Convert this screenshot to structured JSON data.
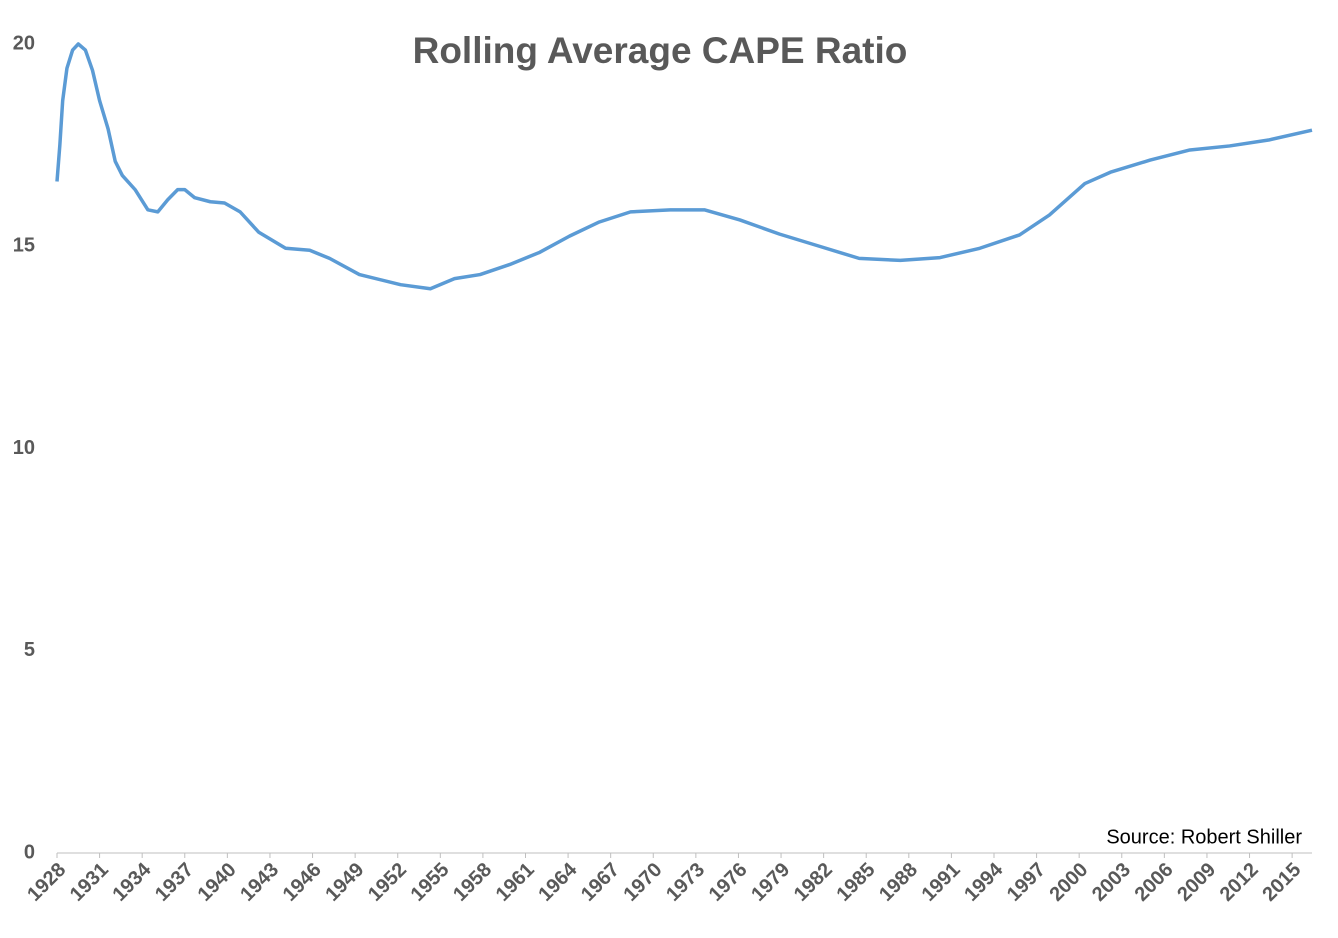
{
  "chart_data": {
    "type": "line",
    "title": "Rolling Average CAPE Ratio",
    "annotation": "Source: Robert Shiller",
    "x": [
      1928.0,
      1928.2,
      1928.4,
      1928.7,
      1929.1,
      1929.5,
      1930.0,
      1930.5,
      1931.0,
      1931.6,
      1932.1,
      1932.6,
      1933.5,
      1934.4,
      1935.1,
      1935.8,
      1936.5,
      1937.0,
      1937.7,
      1938.8,
      1939.8,
      1940.9,
      1942.2,
      1944.1,
      1945.8,
      1947.2,
      1949.3,
      1952.2,
      1954.3,
      1956.0,
      1957.8,
      1959.9,
      1962.0,
      1964.1,
      1966.2,
      1968.4,
      1971.2,
      1973.6,
      1976.1,
      1978.9,
      1981.7,
      1984.5,
      1987.4,
      1990.2,
      1993.0,
      1995.8,
      1997.9,
      2000.4,
      2002.2,
      2005.0,
      2007.8,
      2010.6,
      2013.4,
      2016.4
    ],
    "series": [
      {
        "name": "Rolling Average CAPE",
        "color": "#5b9bd5",
        "values": [
          16.6,
          17.5,
          18.6,
          19.4,
          19.85,
          20.0,
          19.85,
          19.35,
          18.6,
          17.9,
          17.1,
          16.75,
          16.4,
          15.9,
          15.85,
          16.15,
          16.4,
          16.4,
          16.2,
          16.1,
          16.07,
          15.85,
          15.35,
          14.95,
          14.9,
          14.7,
          14.3,
          14.05,
          13.95,
          14.2,
          14.3,
          14.55,
          14.85,
          15.25,
          15.6,
          15.85,
          15.9,
          15.9,
          15.65,
          15.3,
          15.0,
          14.7,
          14.65,
          14.72,
          14.95,
          15.28,
          15.77,
          16.55,
          16.83,
          17.13,
          17.38,
          17.48,
          17.63,
          17.87
        ]
      }
    ],
    "xlim": [
      1928,
      2016.4
    ],
    "xticks": [
      1928,
      1931,
      1934,
      1937,
      1940,
      1943,
      1946,
      1949,
      1952,
      1955,
      1958,
      1961,
      1964,
      1967,
      1970,
      1973,
      1976,
      1979,
      1982,
      1985,
      1988,
      1991,
      1994,
      1997,
      2000,
      2003,
      2006,
      2009,
      2012,
      2015
    ],
    "ylim": [
      0,
      20
    ],
    "yticks": [
      0,
      5,
      10,
      15,
      20
    ],
    "grid": false
  }
}
